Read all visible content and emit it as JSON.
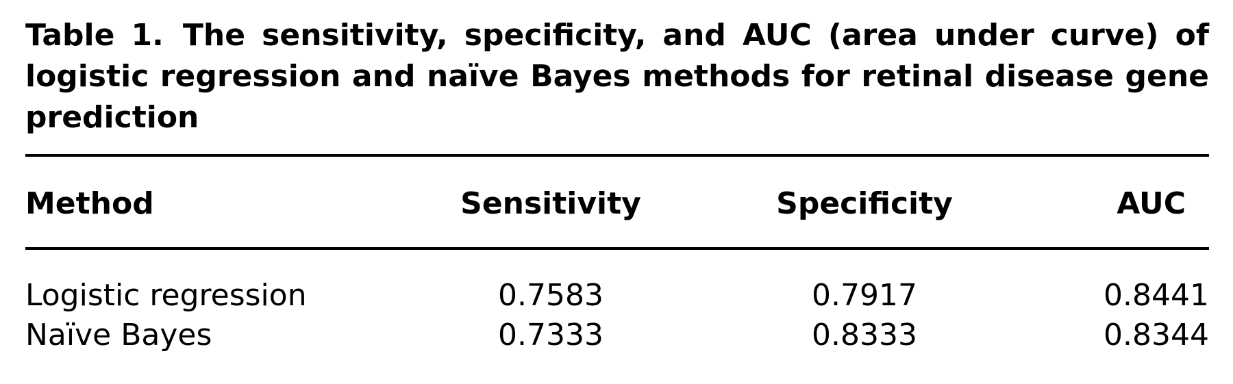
{
  "caption": {
    "label": "Table 1.",
    "text": "The sensitivity, specificity, and AUC (area under curve) of logistic regression and naïve Bayes methods for retinal disease gene prediction"
  },
  "table": {
    "columns": [
      "Method",
      "Sensitivity",
      "Specificity",
      "AUC"
    ],
    "rows": [
      [
        "Logistic regression",
        0.7583,
        0.7917,
        0.8441
      ],
      [
        "Naïve Bayes",
        0.7333,
        0.8333,
        0.8344
      ]
    ]
  }
}
